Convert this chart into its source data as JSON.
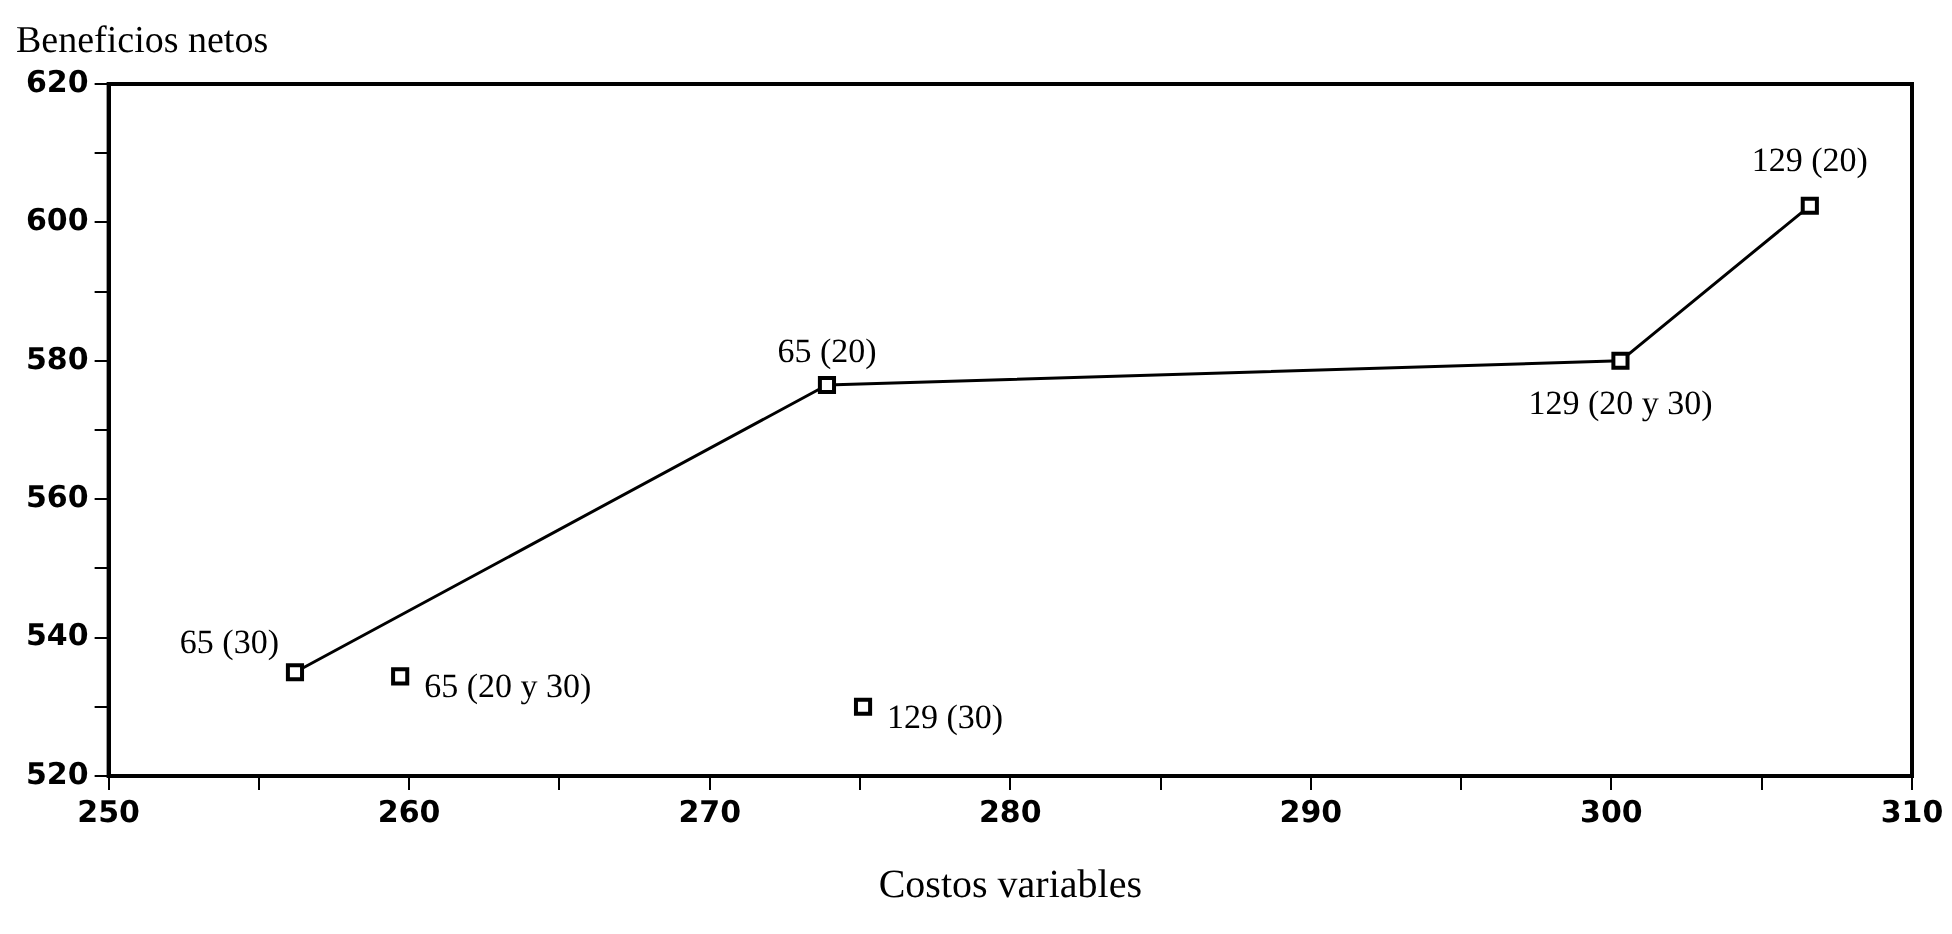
{
  "chart_data": {
    "type": "line",
    "ylabel": "Beneficios netos",
    "xlabel": "Costos variables",
    "series": [
      {
        "color": "#000000",
        "x": [
          256.2,
          273.9,
          300.3,
          306.6
        ],
        "values": [
          535,
          576.5,
          580,
          602.4
        ]
      },
      {
        "type": "scatter",
        "color": "#000000",
        "x": [
          259.7,
          275.1
        ],
        "values": [
          534.4,
          530
        ]
      }
    ],
    "marker": "square",
    "grid": false,
    "legend": false,
    "xlim": [
      250,
      310
    ],
    "ylim": [
      520,
      620
    ],
    "xticks": [
      250,
      {
        "value": 255,
        "label": null
      },
      260,
      {
        "value": 265,
        "label": null
      },
      270,
      {
        "value": 275,
        "label": null
      },
      280,
      {
        "value": 285,
        "label": null
      },
      290,
      {
        "value": 295,
        "label": null
      },
      300,
      {
        "value": 305,
        "label": null
      },
      310
    ],
    "yticks": [
      520,
      {
        "value": 530,
        "label": null
      },
      540,
      {
        "value": 550,
        "label": null
      },
      560,
      {
        "value": 570,
        "label": null
      },
      580,
      {
        "value": 590,
        "label": null
      },
      600,
      {
        "value": 610,
        "label": null
      },
      620
    ],
    "annotations": [
      {
        "text": "65 (30)",
        "x": 256.2,
        "y": 535
      },
      {
        "text": "65 (20)",
        "x": 273.9,
        "y": 576.5
      },
      {
        "text": "129 (20 y 30)",
        "x": 300.3,
        "y": 580
      },
      {
        "text": "129 (20)",
        "x": 306.6,
        "y": 602.4
      },
      {
        "text": "65 (20 y 30)",
        "x": 259.7,
        "y": 534.4
      },
      {
        "text": "129 (30)",
        "x": 275.1,
        "y": 530
      }
    ]
  }
}
